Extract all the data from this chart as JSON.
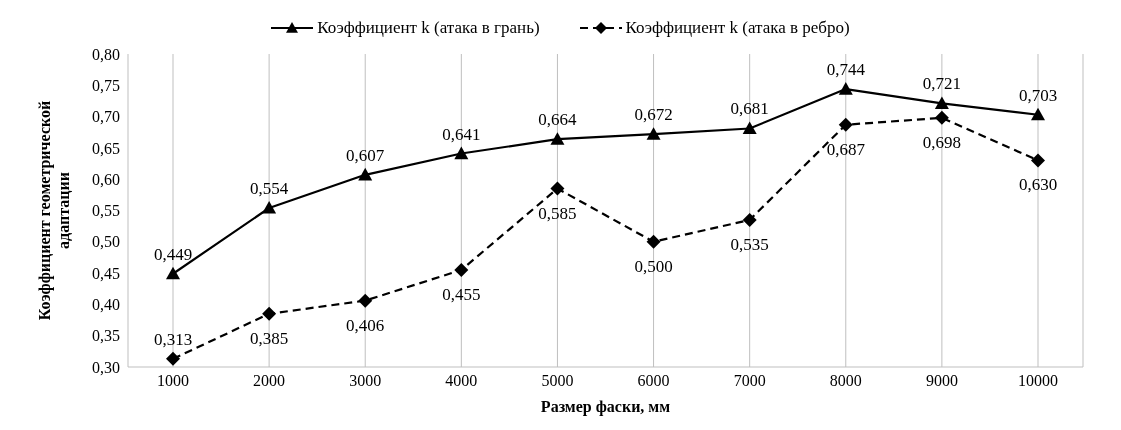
{
  "chart_data": {
    "type": "line",
    "xlabel": "Размер фаски, мм",
    "ylabel": "Коэффициент геометрической адаптации",
    "categories": [
      "1000",
      "2000",
      "3000",
      "4000",
      "5000",
      "6000",
      "7000",
      "8000",
      "9000",
      "10000"
    ],
    "series": [
      {
        "name": "Коэффициент k (атака в грань)",
        "color": "#000000",
        "marker": "triangle",
        "line_style": "solid",
        "values": [
          0.449,
          0.554,
          0.607,
          0.641,
          0.664,
          0.672,
          0.681,
          0.744,
          0.721,
          0.703
        ],
        "value_labels": [
          "0,449",
          "0,554",
          "0,607",
          "0,641",
          "0,664",
          "0,672",
          "0,681",
          "0,744",
          "0,721",
          "0,703"
        ]
      },
      {
        "name": "Коэффициент k (атака в ребро)",
        "color": "#000000",
        "marker": "diamond",
        "line_style": "dashed",
        "values": [
          0.313,
          0.385,
          0.406,
          0.455,
          0.585,
          0.5,
          0.535,
          0.687,
          0.698,
          0.63
        ],
        "value_labels": [
          "0,313",
          "0,385",
          "0,406",
          "0,455",
          "0,585",
          "0,500",
          "0,535",
          "0,687",
          "0,698",
          "0,630"
        ]
      }
    ],
    "ylim": [
      0.3,
      0.8
    ],
    "yticks": [
      {
        "value": 0.3,
        "label": "0,30"
      },
      {
        "value": 0.35,
        "label": "0,35"
      },
      {
        "value": 0.4,
        "label": "0,40"
      },
      {
        "value": 0.45,
        "label": "0,45"
      },
      {
        "value": 0.5,
        "label": "0,50"
      },
      {
        "value": 0.55,
        "label": "0,55"
      },
      {
        "value": 0.6,
        "label": "0,60"
      },
      {
        "value": 0.65,
        "label": "0,65"
      },
      {
        "value": 0.7,
        "label": "0,70"
      },
      {
        "value": 0.75,
        "label": "0,75"
      },
      {
        "value": 0.8,
        "label": "0,80"
      }
    ],
    "grid": "x",
    "legend": "top"
  }
}
